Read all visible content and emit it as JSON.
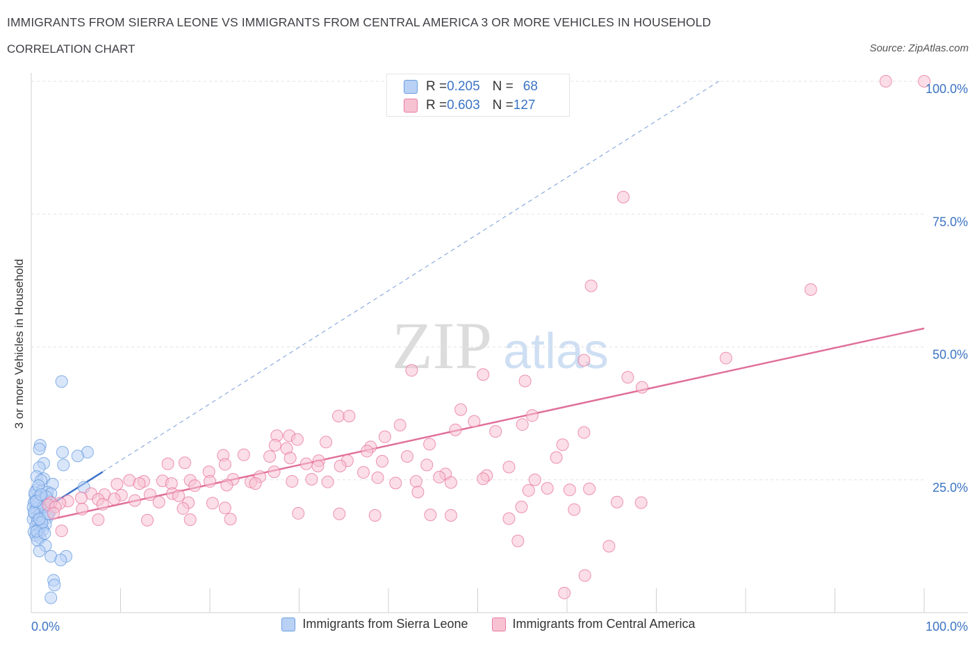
{
  "title": "IMMIGRANTS FROM SIERRA LEONE VS IMMIGRANTS FROM CENTRAL AMERICA 3 OR MORE VEHICLES IN HOUSEHOLD",
  "subtitle": "CORRELATION CHART",
  "source": "Source: ZipAtlas.com",
  "watermark": {
    "zip": "ZIP",
    "atlas": "atlas"
  },
  "stats": [
    {
      "r_label": "R = ",
      "r": "0.205",
      "n_label": "N = ",
      "n": "68"
    },
    {
      "r_label": "R = ",
      "r": "0.603",
      "n_label": "N = ",
      "n": "127"
    }
  ],
  "colors": {
    "blue": "#6a9ee0",
    "blue_fill": "#b9d1f5",
    "blue_line": "#3a70c9",
    "pink": "#e8789f",
    "pink_fill": "#f7c3d3",
    "pink_line": "#e0709a",
    "axis_label": "#3b74c4"
  },
  "chart_data": {
    "type": "scatter",
    "xlabel": "",
    "ylabel": "3 or more Vehicles in Household",
    "xlim": [
      0,
      100
    ],
    "ylim": [
      0,
      100
    ],
    "x_tick_labels": [
      "0.0%",
      "100.0%"
    ],
    "y_tick_labels": [
      "25.0%",
      "50.0%",
      "75.0%",
      "100.0%"
    ],
    "y_ticks": [
      25,
      50,
      75,
      100
    ],
    "grid": true,
    "legend_position": "bottom",
    "series": [
      {
        "name": "Immigrants from Sierra Leone",
        "color": "#6a9ee0",
        "trend": {
          "x": [
            0,
            8
          ],
          "y": [
            18,
            26.5
          ],
          "extended_to": [
            77,
            100
          ]
        },
        "points": [
          [
            3.4,
            43.5
          ],
          [
            1.0,
            31.5
          ],
          [
            0.9,
            30.8
          ],
          [
            3.5,
            30.2
          ],
          [
            6.3,
            30.2
          ],
          [
            5.2,
            29.5
          ],
          [
            1.4,
            28.1
          ],
          [
            3.6,
            27.8
          ],
          [
            0.9,
            27.3
          ],
          [
            0.6,
            25.6
          ],
          [
            1.4,
            25.2
          ],
          [
            1.1,
            24.9
          ],
          [
            2.4,
            24.2
          ],
          [
            5.9,
            23.6
          ],
          [
            0.6,
            23.1
          ],
          [
            1.2,
            22.9
          ],
          [
            1.8,
            22.7
          ],
          [
            2.2,
            22.4
          ],
          [
            0.4,
            22.1
          ],
          [
            0.8,
            21.8
          ],
          [
            1.3,
            21.4
          ],
          [
            0.3,
            20.7
          ],
          [
            0.7,
            20.5
          ],
          [
            1.5,
            20.3
          ],
          [
            1.9,
            20.1
          ],
          [
            0.2,
            19.8
          ],
          [
            0.6,
            19.6
          ],
          [
            1.0,
            19.4
          ],
          [
            1.7,
            19.2
          ],
          [
            2.1,
            19.0
          ],
          [
            0.4,
            18.6
          ],
          [
            0.9,
            18.4
          ],
          [
            1.3,
            18.1
          ],
          [
            1.8,
            17.9
          ],
          [
            0.2,
            17.6
          ],
          [
            0.7,
            17.3
          ],
          [
            1.1,
            17.0
          ],
          [
            1.6,
            16.6
          ],
          [
            0.5,
            16.3
          ],
          [
            0.9,
            15.9
          ],
          [
            1.3,
            15.6
          ],
          [
            0.3,
            15.2
          ],
          [
            0.8,
            14.9
          ],
          [
            0.5,
            14.5
          ],
          [
            1.0,
            14.1
          ],
          [
            0.7,
            13.6
          ],
          [
            1.6,
            12.6
          ],
          [
            0.9,
            11.6
          ],
          [
            2.2,
            10.6
          ],
          [
            3.9,
            10.6
          ],
          [
            3.3,
            9.9
          ],
          [
            2.5,
            6.1
          ],
          [
            2.6,
            5.2
          ],
          [
            2.2,
            2.8
          ],
          [
            0.4,
            22.6
          ],
          [
            0.6,
            21.1
          ],
          [
            1.4,
            19.9
          ],
          [
            2.0,
            21.0
          ],
          [
            0.3,
            18.9
          ],
          [
            1.2,
            16.9
          ],
          [
            0.6,
            15.3
          ],
          [
            1.7,
            21.8
          ],
          [
            0.8,
            23.9
          ],
          [
            1.9,
            18.6
          ],
          [
            0.5,
            20.9
          ],
          [
            1.1,
            22.2
          ],
          [
            0.9,
            17.6
          ],
          [
            1.5,
            14.9
          ]
        ]
      },
      {
        "name": "Immigrants from Central America",
        "color": "#e8789f",
        "trend": {
          "x": [
            2,
            100
          ],
          "y": [
            17.5,
            53.5
          ]
        },
        "points": [
          [
            95.7,
            100
          ],
          [
            100,
            100
          ],
          [
            66.3,
            78.2
          ],
          [
            62.7,
            61.5
          ],
          [
            87.3,
            60.8
          ],
          [
            77.8,
            47.9
          ],
          [
            61.9,
            47.5
          ],
          [
            42.6,
            45.6
          ],
          [
            50.6,
            44.8
          ],
          [
            66.8,
            44.3
          ],
          [
            55.3,
            43.6
          ],
          [
            68.4,
            42.4
          ],
          [
            48.1,
            38.2
          ],
          [
            34.4,
            37.0
          ],
          [
            35.6,
            37.0
          ],
          [
            56.1,
            37.1
          ],
          [
            49.6,
            36.0
          ],
          [
            41.3,
            35.3
          ],
          [
            55.0,
            35.4
          ],
          [
            47.5,
            34.4
          ],
          [
            52.0,
            34.1
          ],
          [
            61.9,
            33.9
          ],
          [
            27.5,
            33.3
          ],
          [
            28.9,
            33.3
          ],
          [
            39.6,
            33.1
          ],
          [
            29.8,
            32.6
          ],
          [
            33.0,
            32.1
          ],
          [
            27.3,
            31.5
          ],
          [
            44.6,
            31.7
          ],
          [
            59.5,
            31.6
          ],
          [
            38.0,
            31.2
          ],
          [
            28.6,
            30.9
          ],
          [
            37.6,
            30.4
          ],
          [
            21.5,
            29.6
          ],
          [
            23.8,
            29.7
          ],
          [
            26.7,
            29.4
          ],
          [
            29.0,
            29.1
          ],
          [
            42.1,
            29.4
          ],
          [
            58.8,
            29.2
          ],
          [
            32.2,
            28.6
          ],
          [
            35.4,
            28.6
          ],
          [
            39.3,
            28.5
          ],
          [
            15.3,
            28.0
          ],
          [
            17.2,
            28.2
          ],
          [
            21.7,
            27.9
          ],
          [
            30.8,
            28.0
          ],
          [
            32.1,
            27.6
          ],
          [
            34.6,
            27.6
          ],
          [
            44.3,
            27.8
          ],
          [
            53.5,
            27.4
          ],
          [
            19.9,
            26.5
          ],
          [
            27.2,
            26.5
          ],
          [
            37.2,
            26.4
          ],
          [
            46.4,
            26.1
          ],
          [
            51.0,
            25.8
          ],
          [
            25.6,
            25.6
          ],
          [
            31.4,
            25.1
          ],
          [
            38.8,
            25.4
          ],
          [
            45.7,
            25.5
          ],
          [
            50.6,
            25.2
          ],
          [
            56.4,
            25.0
          ],
          [
            11.0,
            24.9
          ],
          [
            12.6,
            24.7
          ],
          [
            14.7,
            24.8
          ],
          [
            17.8,
            24.9
          ],
          [
            20.0,
            24.7
          ],
          [
            22.6,
            25.1
          ],
          [
            24.6,
            24.6
          ],
          [
            29.2,
            24.7
          ],
          [
            33.2,
            24.6
          ],
          [
            40.8,
            24.4
          ],
          [
            43.1,
            24.7
          ],
          [
            47.0,
            24.5
          ],
          [
            9.6,
            24.2
          ],
          [
            12.1,
            24.3
          ],
          [
            15.7,
            24.3
          ],
          [
            18.3,
            23.9
          ],
          [
            21.9,
            24.0
          ],
          [
            25.1,
            24.3
          ],
          [
            6.7,
            22.4
          ],
          [
            8.2,
            22.2
          ],
          [
            10.1,
            22.1
          ],
          [
            13.3,
            22.2
          ],
          [
            15.8,
            22.4
          ],
          [
            16.5,
            22.0
          ],
          [
            9.3,
            21.4
          ],
          [
            11.6,
            21.1
          ],
          [
            14.3,
            20.8
          ],
          [
            17.6,
            20.7
          ],
          [
            20.3,
            20.6
          ],
          [
            5.6,
            21.6
          ],
          [
            7.5,
            21.3
          ],
          [
            4.1,
            21.0
          ],
          [
            3.2,
            20.6
          ],
          [
            2.2,
            20.7
          ],
          [
            1.9,
            20.3
          ],
          [
            2.7,
            19.9
          ],
          [
            2.5,
            18.7
          ],
          [
            5.7,
            19.5
          ],
          [
            8.0,
            20.4
          ],
          [
            17.0,
            19.6
          ],
          [
            21.7,
            19.7
          ],
          [
            29.9,
            18.7
          ],
          [
            38.5,
            18.3
          ],
          [
            44.7,
            18.4
          ],
          [
            7.5,
            17.5
          ],
          [
            13.0,
            17.4
          ],
          [
            17.8,
            17.5
          ],
          [
            22.3,
            17.6
          ],
          [
            34.5,
            18.6
          ],
          [
            47.0,
            18.3
          ],
          [
            53.5,
            17.7
          ],
          [
            3.4,
            15.4
          ],
          [
            54.9,
            19.9
          ],
          [
            60.8,
            19.4
          ],
          [
            65.6,
            20.8
          ],
          [
            68.3,
            20.7
          ],
          [
            62.5,
            23.3
          ],
          [
            57.8,
            23.4
          ],
          [
            54.5,
            13.5
          ],
          [
            64.7,
            12.5
          ],
          [
            62.0,
            7.0
          ],
          [
            59.7,
            3.7
          ],
          [
            60.3,
            23.1
          ],
          [
            55.7,
            23.0
          ],
          [
            43.3,
            22.7
          ]
        ]
      }
    ]
  },
  "legend": [
    {
      "label": "Immigrants from Sierra Leone"
    },
    {
      "label": "Immigrants from Central America"
    }
  ]
}
